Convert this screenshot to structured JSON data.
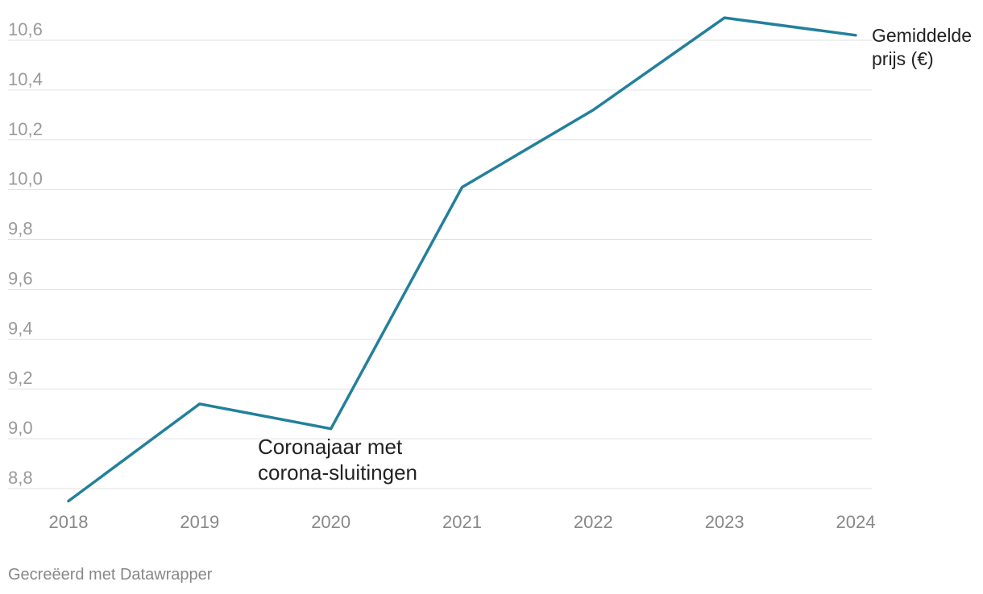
{
  "chart_data": {
    "type": "line",
    "x": [
      "2018",
      "2019",
      "2020",
      "2021",
      "2022",
      "2023",
      "2024"
    ],
    "series": [
      {
        "name": "Gemiddelde prijs (€)",
        "values": [
          8.75,
          9.14,
          9.04,
          10.01,
          10.32,
          10.69,
          10.62
        ]
      }
    ],
    "y_ticks": [
      "8,8",
      "9,0",
      "9,2",
      "9,4",
      "9,6",
      "9,8",
      "10,0",
      "10,2",
      "10,4",
      "10,6"
    ],
    "y_tick_values": [
      8.8,
      9.0,
      9.2,
      9.4,
      9.6,
      9.8,
      10.0,
      10.2,
      10.4,
      10.6
    ],
    "ylim": [
      8.7,
      10.7
    ],
    "grid": "horizontal",
    "series_label_lines": [
      "Gemiddelde",
      "prijs (€)"
    ],
    "annotation": {
      "x": "2020",
      "lines": [
        "Coronajaar met",
        "corona-sluitingen"
      ]
    },
    "line_color": "#23809b",
    "title": "",
    "xlabel": "",
    "ylabel": ""
  },
  "footer": {
    "credit": "Gecreëerd met Datawrapper"
  }
}
